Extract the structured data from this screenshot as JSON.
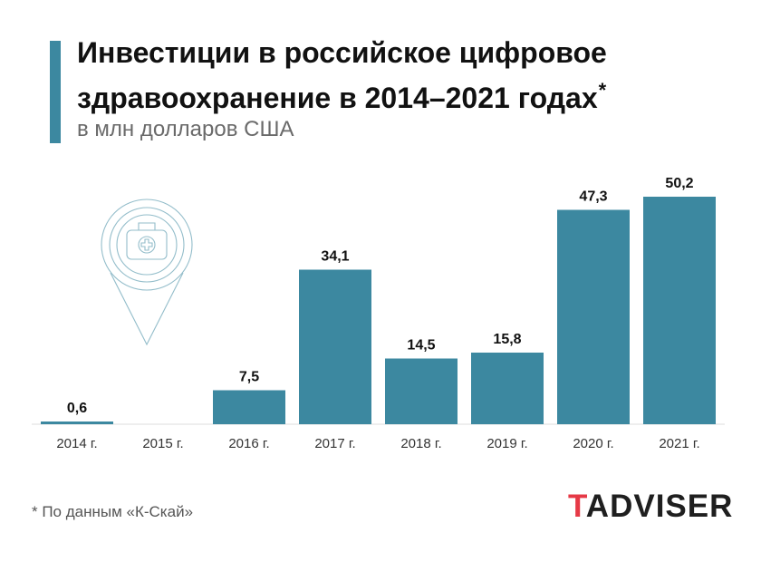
{
  "header": {
    "title": "Инвестиции в российское цифровое здравоохранение в 2014–2021 годах",
    "title_mark": "*",
    "subtitle": "в млн долларов США",
    "accent_color": "#3c88a0"
  },
  "chart_data": {
    "type": "bar",
    "categories": [
      "2014 г.",
      "2015 г.",
      "2016 г.",
      "2017 г.",
      "2018 г.",
      "2019 г.",
      "2020 г.",
      "2021 г."
    ],
    "values": [
      0.6,
      null,
      7.5,
      34.1,
      14.5,
      15.8,
      47.3,
      50.2
    ],
    "value_labels": [
      "0,6",
      "",
      "7,5",
      "34,1",
      "14,5",
      "15,8",
      "47,3",
      "50,2"
    ],
    "bar_color": "#3c88a0",
    "ylim": [
      0,
      50.2
    ],
    "grid": false,
    "legend": "none"
  },
  "decoration": {
    "icon": "medical-kit-location-pin-icon",
    "color": "#3c88a0"
  },
  "footer": {
    "note": "* По данным «К-Скай»",
    "logo_first_letter": "T",
    "logo_rest": "ADVISER",
    "logo_accent_color": "#e63946"
  }
}
